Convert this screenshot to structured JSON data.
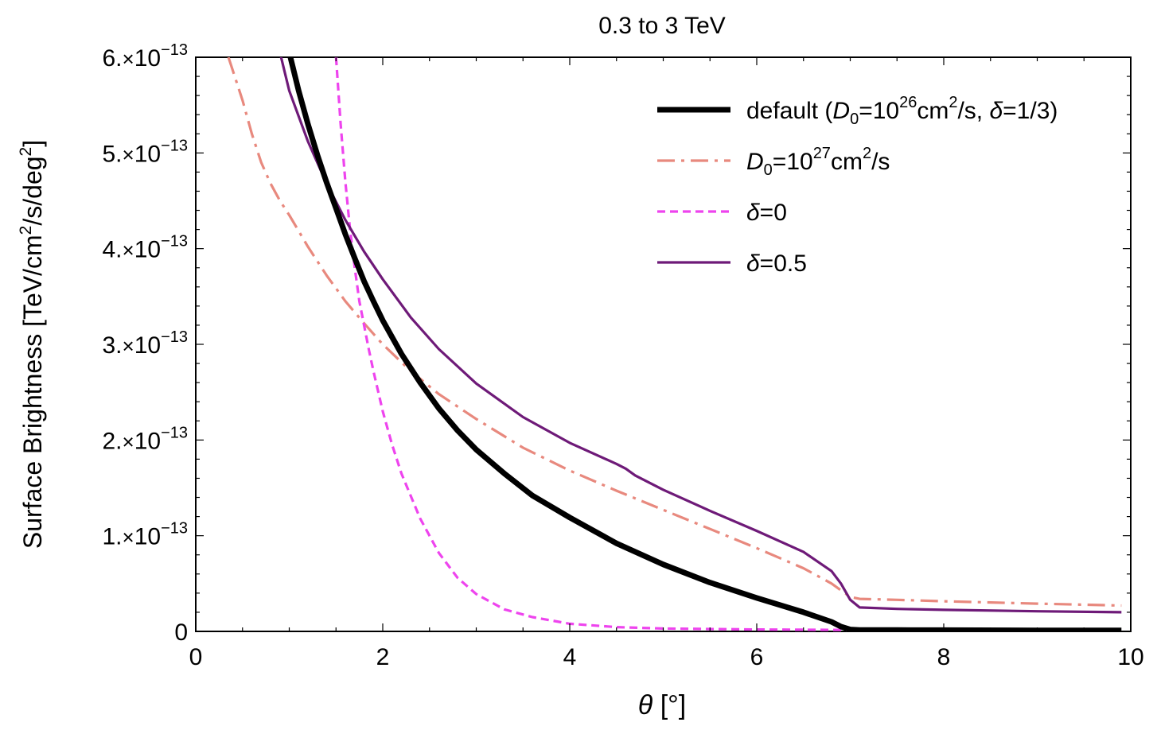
{
  "chart_data": {
    "type": "line",
    "title": "0.3 to 3 TeV",
    "xlabel_symbol": "θ",
    "xlabel_unit": " [°]",
    "ylabel": "Surface Brightness [TeV/cm²/s/deg²]",
    "ylabel_parts": [
      "Surface Brightness [TeV/cm",
      "2",
      "/s/deg",
      "2",
      "]"
    ],
    "xlim": [
      0,
      10
    ],
    "ylim": [
      0,
      6e-13
    ],
    "x_ticks": [
      {
        "value": 0,
        "label": "0"
      },
      {
        "value": 2,
        "label": "2"
      },
      {
        "value": 4,
        "label": "4"
      },
      {
        "value": 6,
        "label": "6"
      },
      {
        "value": 8,
        "label": "8"
      },
      {
        "value": 10,
        "label": "10"
      }
    ],
    "y_ticks": [
      {
        "value": 0,
        "label": "0"
      },
      {
        "value": 1e-13,
        "mantissa": "1.",
        "times": "×",
        "base": "10",
        "exponent": "−13"
      },
      {
        "value": 2e-13,
        "mantissa": "2.",
        "times": "×",
        "base": "10",
        "exponent": "−13"
      },
      {
        "value": 3e-13,
        "mantissa": "3.",
        "times": "×",
        "base": "10",
        "exponent": "−13"
      },
      {
        "value": 4e-13,
        "mantissa": "4.",
        "times": "×",
        "base": "10",
        "exponent": "−13"
      },
      {
        "value": 5e-13,
        "mantissa": "5.",
        "times": "×",
        "base": "10",
        "exponent": "−13"
      },
      {
        "value": 6e-13,
        "mantissa": "6.",
        "times": "×",
        "base": "10",
        "exponent": "−13"
      }
    ],
    "series": [
      {
        "name": "default (D0=10^26cm²/s, δ=1/3)",
        "legend_parts": [
          {
            "t": "default (",
            "s": "n"
          },
          {
            "t": "D",
            "s": "i"
          },
          {
            "t": "0",
            "s": "sub"
          },
          {
            "t": "=10",
            "s": "n"
          },
          {
            "t": "26",
            "s": "sup"
          },
          {
            "t": "cm",
            "s": "n"
          },
          {
            "t": "2",
            "s": "sup"
          },
          {
            "t": "/s, ",
            "s": "n"
          },
          {
            "t": "δ",
            "s": "i"
          },
          {
            "t": "=1/3)",
            "s": "n"
          }
        ],
        "color": "#000000",
        "style": "solid",
        "width": 7,
        "x": [
          1.0,
          1.1,
          1.2,
          1.3,
          1.4,
          1.5,
          1.6,
          1.7,
          1.8,
          1.9,
          2.0,
          2.2,
          2.4,
          2.6,
          2.8,
          3.0,
          3.3,
          3.6,
          4.0,
          4.5,
          5.0,
          5.5,
          6.0,
          6.5,
          6.8,
          6.9,
          7.0,
          7.1,
          7.5,
          8.0,
          9.0,
          9.9
        ],
        "y": [
          6.05e-13,
          5.65e-13,
          5.3e-13,
          4.98e-13,
          4.69e-13,
          4.42e-13,
          4.15e-13,
          3.9e-13,
          3.66e-13,
          3.45e-13,
          3.25e-13,
          2.9e-13,
          2.6e-13,
          2.33e-13,
          2.1e-13,
          1.9e-13,
          1.65e-13,
          1.42e-13,
          1.19e-13,
          9.2e-14,
          7e-14,
          5.1e-14,
          3.5e-14,
          2e-14,
          1e-14,
          5e-15,
          2e-15,
          1.5e-15,
          1.4e-15,
          1.3e-15,
          1.1e-15,
          1e-15
        ]
      },
      {
        "name": "D0=10^27cm²/s",
        "legend_parts": [
          {
            "t": "D",
            "s": "i"
          },
          {
            "t": "0",
            "s": "sub"
          },
          {
            "t": "=10",
            "s": "n"
          },
          {
            "t": "27",
            "s": "sup"
          },
          {
            "t": "cm",
            "s": "n"
          },
          {
            "t": "2",
            "s": "sup"
          },
          {
            "t": "/s",
            "s": "n"
          }
        ],
        "color": "#e8897e",
        "style": "dashdot",
        "width": 3.2,
        "x": [
          0.35,
          0.5,
          0.6,
          0.7,
          0.8,
          0.9,
          1.0,
          1.2,
          1.4,
          1.6,
          1.8,
          2.0,
          2.3,
          2.6,
          3.0,
          3.5,
          4.0,
          4.5,
          5.0,
          5.5,
          6.0,
          6.5,
          6.8,
          6.9,
          7.0,
          7.1,
          7.5,
          8.0,
          9.0,
          9.9
        ],
        "y": [
          6e-13,
          5.55e-13,
          5.2e-13,
          4.9e-13,
          4.68e-13,
          4.5e-13,
          4.35e-13,
          4.02e-13,
          3.72e-13,
          3.45e-13,
          3.22e-13,
          3e-13,
          2.72e-13,
          2.48e-13,
          2.22e-13,
          1.92e-13,
          1.68e-13,
          1.47e-13,
          1.27e-13,
          1.07e-13,
          8.7e-14,
          6.6e-14,
          5e-14,
          4.3e-14,
          3.6e-14,
          3.4e-14,
          3.3e-14,
          3.15e-14,
          2.9e-14,
          2.7e-14
        ]
      },
      {
        "name": "δ=0",
        "legend_parts": [
          {
            "t": "δ",
            "s": "i"
          },
          {
            "t": "=0",
            "s": "n"
          }
        ],
        "color": "#ee44ee",
        "style": "dashed",
        "width": 3.2,
        "x": [
          1.5,
          1.55,
          1.6,
          1.65,
          1.7,
          1.75,
          1.8,
          1.85,
          1.9,
          2.0,
          2.1,
          2.2,
          2.4,
          2.6,
          2.8,
          3.0,
          3.3,
          3.6,
          4.0,
          4.5,
          5.0,
          6.0,
          7.0,
          8.0,
          9.0,
          9.9
        ],
        "y": [
          6e-13,
          5.3e-13,
          4.7e-13,
          4.2e-13,
          3.8e-13,
          3.45e-13,
          3.2e-13,
          2.95e-13,
          2.72e-13,
          2.3e-13,
          1.95e-13,
          1.65e-13,
          1.18e-13,
          8.2e-14,
          5.6e-14,
          3.9e-14,
          2.3e-14,
          1.5e-14,
          8e-15,
          4.5e-15,
          3e-15,
          2e-15,
          1.5e-15,
          1.2e-15,
          1e-15,
          1e-15
        ]
      },
      {
        "name": "δ=0.5",
        "legend_parts": [
          {
            "t": "δ",
            "s": "i"
          },
          {
            "t": "=0.5",
            "s": "n"
          }
        ],
        "color": "#6e1a78",
        "style": "solid",
        "width": 3.2,
        "x": [
          0.9,
          1.0,
          1.2,
          1.4,
          1.6,
          1.8,
          2.0,
          2.3,
          2.6,
          3.0,
          3.5,
          4.0,
          4.5,
          4.6,
          4.7,
          5.0,
          5.5,
          6.0,
          6.5,
          6.8,
          6.9,
          7.0,
          7.1,
          7.5,
          8.0,
          9.0,
          9.9
        ],
        "y": [
          6.05e-13,
          5.65e-13,
          5.12e-13,
          4.68e-13,
          4.3e-13,
          3.97e-13,
          3.68e-13,
          3.28e-13,
          2.95e-13,
          2.59e-13,
          2.24e-13,
          1.97e-13,
          1.75e-13,
          1.7e-13,
          1.63e-13,
          1.48e-13,
          1.26e-13,
          1.05e-13,
          8.3e-14,
          6.3e-14,
          5e-14,
          3.3e-14,
          2.5e-14,
          2.35e-14,
          2.25e-14,
          2.1e-14,
          2e-14
        ]
      }
    ],
    "legend_position": "top-right",
    "grid": false
  }
}
